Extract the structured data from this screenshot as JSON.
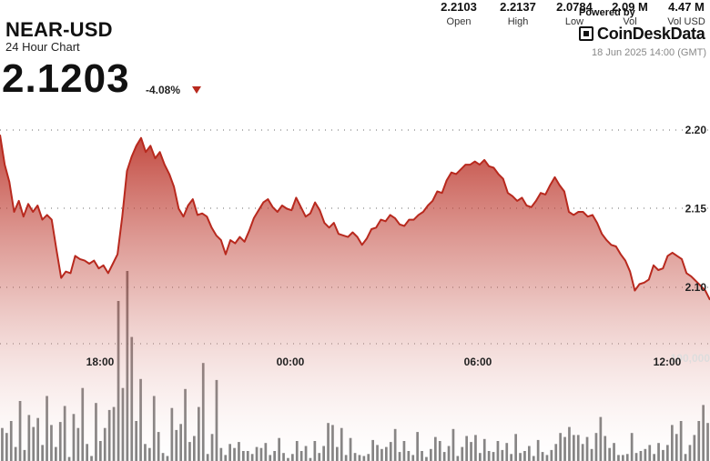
{
  "header": {
    "pair": "NEAR-USD",
    "subtitle": "24 Hour Chart",
    "price": "2.1203",
    "change": "-4.08%",
    "powered_by": "Powered by",
    "brand": "CoinDeskData",
    "timestamp": "18 Jun 2025 14:00 (GMT)"
  },
  "stats": [
    {
      "value": "2.2103",
      "label": "Open"
    },
    {
      "value": "2.2137",
      "label": "High"
    },
    {
      "value": "2.0784",
      "label": "Low"
    },
    {
      "value": "2.09 M",
      "label": "Vol"
    },
    {
      "value": "4.47 M",
      "label": "Vol USD"
    }
  ],
  "colors": {
    "line": "#b8291e",
    "fill_top": "#bf4a40",
    "volume_bar": "#555555",
    "down_arrow": "#b8291e"
  },
  "chart_data": {
    "type": "area",
    "title": "NEAR-USD",
    "xlabel": "",
    "ylabel": "",
    "x_ticks": [
      "18:00",
      "00:00",
      "06:00",
      "12:00"
    ],
    "y_ticks": [
      "2.20",
      "2.15",
      "2.10"
    ],
    "ylim": [
      2.055,
      2.225
    ],
    "volume_tick": "100,000",
    "grid": "dotted horizontal",
    "series": [
      {
        "values": [
          2.197,
          2.178,
          2.167,
          2.148,
          2.155,
          2.145,
          2.153,
          2.148,
          2.152,
          2.143,
          2.146,
          2.143,
          2.124,
          2.106,
          2.11,
          2.109,
          2.12,
          2.118,
          2.117,
          2.115,
          2.117,
          2.112,
          2.114,
          2.109,
          2.115,
          2.121,
          2.145,
          2.174,
          2.183,
          2.19,
          2.195,
          2.186,
          2.19,
          2.182,
          2.186,
          2.178,
          2.172,
          2.164,
          2.15,
          2.145,
          2.152,
          2.156,
          2.146,
          2.147,
          2.145,
          2.138,
          2.133,
          2.13,
          2.121,
          2.13,
          2.128,
          2.132,
          2.129,
          2.136,
          2.144,
          2.149,
          2.154,
          2.156,
          2.151,
          2.148,
          2.152,
          2.15,
          2.149,
          2.157,
          2.151,
          2.145,
          2.147,
          2.154,
          2.149,
          2.141,
          2.138,
          2.141,
          2.134,
          2.133,
          2.132,
          2.135,
          2.132,
          2.127,
          2.131,
          2.137,
          2.138,
          2.143,
          2.142,
          2.146,
          2.144,
          2.14,
          2.139,
          2.143,
          2.143,
          2.146,
          2.148,
          2.152,
          2.155,
          2.161,
          2.16,
          2.168,
          2.173,
          2.172,
          2.175,
          2.178,
          2.178,
          2.18,
          2.178,
          2.181,
          2.177,
          2.176,
          2.172,
          2.169,
          2.16,
          2.158,
          2.155,
          2.157,
          2.152,
          2.151,
          2.155,
          2.16,
          2.159,
          2.165,
          2.17,
          2.165,
          2.161,
          2.148,
          2.146,
          2.148,
          2.148,
          2.145,
          2.146,
          2.141,
          2.134,
          2.13,
          2.127,
          2.126,
          2.121,
          2.117,
          2.11,
          2.098,
          2.102,
          2.103,
          2.105,
          2.114,
          2.111,
          2.112,
          2.12,
          2.122,
          2.12,
          2.118,
          2.109,
          2.107,
          2.104,
          2.101,
          2.098,
          2.092
        ]
      }
    ],
    "volume": [
      33,
      28,
      40,
      14,
      60,
      11,
      46,
      34,
      43,
      16,
      65,
      36,
      14,
      39,
      55,
      4,
      47,
      33,
      73,
      17,
      5,
      58,
      20,
      33,
      51,
      54,
      160,
      73,
      190,
      124,
      40,
      82,
      17,
      13,
      65,
      29,
      8,
      5,
      53,
      31,
      37,
      72,
      19,
      25,
      54,
      98,
      7,
      27,
      81,
      13,
      6,
      17,
      13,
      19,
      10,
      10,
      7,
      14,
      13,
      18,
      6,
      10,
      23,
      8,
      3,
      7,
      20,
      10,
      15,
      3,
      20,
      8,
      15,
      38,
      36,
      14,
      33,
      6,
      23,
      8,
      6,
      5,
      7,
      21,
      16,
      12,
      14,
      19,
      32,
      9,
      20,
      10,
      6,
      29,
      10,
      4,
      12,
      24,
      20,
      9,
      15,
      32,
      5,
      14,
      25,
      19,
      26,
      8,
      22,
      10,
      9,
      20,
      11,
      18,
      7,
      27,
      8,
      10,
      15,
      5,
      21,
      9,
      6,
      11,
      17,
      28,
      24,
      34,
      26,
      26,
      17,
      24,
      12,
      28,
      44,
      25,
      13,
      18,
      6,
      6,
      7,
      28,
      8,
      10,
      12,
      16,
      7,
      18,
      11,
      16,
      36,
      27,
      40,
      7,
      16,
      26,
      40,
      56,
      38
    ]
  }
}
